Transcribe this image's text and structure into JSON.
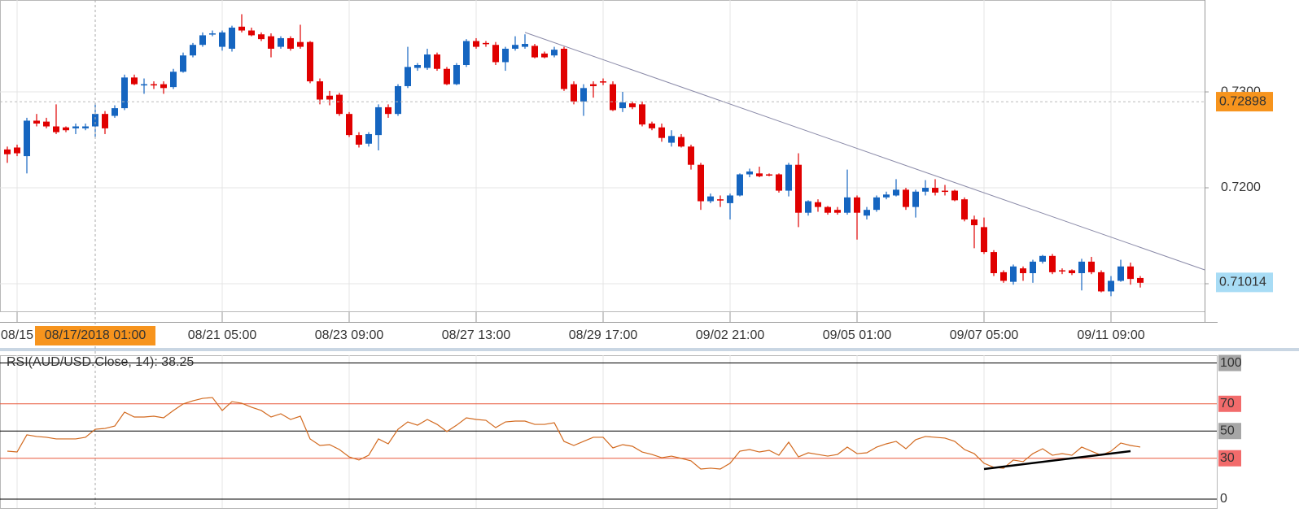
{
  "chart_data": [
    {
      "type": "candlestick",
      "categories": [
        null,
        "08/15",
        null,
        null,
        null,
        null,
        null,
        null,
        null,
        null,
        null,
        null,
        null,
        null,
        null,
        null,
        null,
        null,
        null,
        null,
        null,
        null,
        "08/21 05:00",
        null,
        null,
        null,
        null,
        null,
        null,
        null,
        null,
        null,
        null,
        null,
        null,
        "08/23 09:00",
        null,
        null,
        null,
        null,
        null,
        null,
        null,
        null,
        null,
        null,
        null,
        null,
        "08/27 13:00",
        null,
        null,
        null,
        null,
        null,
        null,
        null,
        null,
        null,
        null,
        null,
        null,
        "08/29 17:00",
        null,
        null,
        null,
        null,
        null,
        null,
        null,
        null,
        null,
        null,
        null,
        null,
        "09/02 21:00",
        null,
        null,
        null,
        null,
        null,
        null,
        null,
        null,
        null,
        null,
        null,
        null,
        "09/05 01:00",
        null,
        null,
        null,
        null,
        null,
        null,
        null,
        null,
        null,
        null,
        null,
        null,
        "09/07 05:00",
        null,
        null,
        null,
        null,
        null,
        null,
        null,
        null,
        null,
        null,
        null,
        null,
        "09/11 09:00",
        null,
        null,
        null
      ],
      "open": [
        0.724,
        0.7242,
        0.7233,
        0.727,
        0.7269,
        0.7264,
        0.7263,
        0.7262,
        0.7262,
        0.7264,
        0.7277,
        0.7275,
        0.7283,
        0.7315,
        0.7307,
        0.7308,
        0.7308,
        0.7305,
        0.7321,
        0.7338,
        0.7349,
        0.736,
        0.7347,
        0.7345,
        0.7368,
        0.7364,
        0.736,
        0.7358,
        0.7347,
        0.7356,
        0.7352,
        0.7352,
        0.7311,
        0.7296,
        0.7297,
        0.7277,
        0.7255,
        0.7246,
        0.7255,
        0.7284,
        0.7277,
        0.7306,
        0.7325,
        0.7325,
        0.7339,
        0.7324,
        0.7308,
        0.7328,
        0.7353,
        0.7351,
        0.7349,
        0.7331,
        0.7345,
        0.7347,
        0.7348,
        0.734,
        0.7338,
        0.7345,
        0.7308,
        0.729,
        0.7308,
        0.7311,
        0.7308,
        0.7283,
        0.7288,
        0.7287,
        0.7267,
        0.7263,
        0.7247,
        0.7253,
        0.7243,
        0.7224,
        0.7186,
        0.7188,
        0.7184,
        0.7192,
        0.7214,
        0.7215,
        0.7214,
        0.7214,
        0.7197,
        0.7224,
        0.7174,
        0.7185,
        0.718,
        0.7177,
        0.7174,
        0.719,
        0.7171,
        0.7177,
        0.719,
        0.7192,
        0.7198,
        0.718,
        0.7196,
        0.72,
        0.7197,
        0.7197,
        0.7188,
        0.7167,
        0.7159,
        0.7133,
        0.7112,
        0.7102,
        0.7116,
        0.7111,
        0.7123,
        0.7129,
        0.7114,
        0.7114,
        0.7111,
        0.7123,
        0.7112,
        0.7092,
        0.7103,
        0.7118,
        0.7106
      ],
      "high": [
        0.7243,
        0.7245,
        0.7273,
        0.7277,
        0.7273,
        0.7287,
        0.7264,
        0.7267,
        0.7267,
        0.7288,
        0.728,
        0.7286,
        0.7318,
        0.7318,
        0.7314,
        0.7311,
        0.7311,
        0.7324,
        0.7341,
        0.7351,
        0.7362,
        0.7364,
        0.7364,
        0.7369,
        0.7381,
        0.7367,
        0.7362,
        0.7361,
        0.7358,
        0.7358,
        0.737,
        0.7353,
        0.7314,
        0.7301,
        0.7299,
        0.7279,
        0.7258,
        0.7258,
        0.7287,
        0.7287,
        0.7308,
        0.7347,
        0.733,
        0.7345,
        0.7341,
        0.7326,
        0.733,
        0.7355,
        0.7356,
        0.7353,
        0.7352,
        0.7347,
        0.7358,
        0.736,
        0.735,
        0.7342,
        0.7347,
        0.7347,
        0.7311,
        0.7308,
        0.7311,
        0.7314,
        0.7311,
        0.73,
        0.729,
        0.729,
        0.7269,
        0.7267,
        0.726,
        0.7256,
        0.7245,
        0.7226,
        0.7194,
        0.7192,
        0.7194,
        0.7215,
        0.722,
        0.7222,
        0.7215,
        0.7215,
        0.7226,
        0.7236,
        0.7187,
        0.7188,
        0.7181,
        0.718,
        0.7219,
        0.7192,
        0.718,
        0.7192,
        0.7196,
        0.7209,
        0.72,
        0.7198,
        0.7208,
        0.7209,
        0.7203,
        0.7198,
        0.719,
        0.7171,
        0.7169,
        0.7135,
        0.7114,
        0.712,
        0.7118,
        0.7125,
        0.713,
        0.7131,
        0.7116,
        0.7115,
        0.7126,
        0.7128,
        0.7114,
        0.7108,
        0.7125,
        0.7122,
        0.7108
      ],
      "low": [
        0.7226,
        0.7233,
        0.7215,
        0.7264,
        0.7262,
        0.7256,
        0.7258,
        0.7256,
        0.726,
        0.7253,
        0.7256,
        0.7273,
        0.7281,
        0.7307,
        0.7298,
        0.7303,
        0.7298,
        0.7303,
        0.732,
        0.7336,
        0.7347,
        0.7358,
        0.7343,
        0.7342,
        0.7362,
        0.7358,
        0.7353,
        0.7336,
        0.7345,
        0.7343,
        0.7345,
        0.7309,
        0.7287,
        0.7286,
        0.7275,
        0.7253,
        0.7242,
        0.7243,
        0.7239,
        0.7273,
        0.7275,
        0.7304,
        0.7322,
        0.7323,
        0.7322,
        0.7307,
        0.7307,
        0.7326,
        0.7345,
        0.7347,
        0.7328,
        0.7322,
        0.7343,
        0.7345,
        0.7335,
        0.7335,
        0.7336,
        0.7301,
        0.7287,
        0.7275,
        0.7294,
        0.7307,
        0.728,
        0.7279,
        0.7282,
        0.7264,
        0.726,
        0.7248,
        0.7243,
        0.7242,
        0.7219,
        0.7177,
        0.7184,
        0.718,
        0.7167,
        0.7191,
        0.7211,
        0.7211,
        0.7212,
        0.7195,
        0.7191,
        0.7159,
        0.7171,
        0.7175,
        0.7172,
        0.7172,
        0.7172,
        0.7146,
        0.7167,
        0.7175,
        0.7188,
        0.7191,
        0.7177,
        0.7169,
        0.7192,
        0.7192,
        0.7192,
        0.7186,
        0.7165,
        0.7137,
        0.7131,
        0.7108,
        0.7101,
        0.7099,
        0.7103,
        0.7101,
        0.7121,
        0.711,
        0.711,
        0.7109,
        0.7093,
        0.711,
        0.7091,
        0.7087,
        0.7102,
        0.7099,
        0.7096
      ],
      "close": [
        0.7235,
        0.7236,
        0.727,
        0.7267,
        0.7264,
        0.7258,
        0.726,
        0.7264,
        0.7264,
        0.7277,
        0.7262,
        0.7283,
        0.7315,
        0.7308,
        0.7308,
        0.7307,
        0.7304,
        0.7321,
        0.7338,
        0.7349,
        0.7359,
        0.7361,
        0.7362,
        0.7367,
        0.7364,
        0.7359,
        0.7355,
        0.7345,
        0.7356,
        0.7345,
        0.7347,
        0.7311,
        0.7292,
        0.7292,
        0.7277,
        0.7255,
        0.7245,
        0.7256,
        0.7284,
        0.7277,
        0.7306,
        0.7326,
        0.7328,
        0.7339,
        0.7324,
        0.7308,
        0.7328,
        0.7353,
        0.7347,
        0.735,
        0.7331,
        0.7345,
        0.7349,
        0.735,
        0.7336,
        0.7336,
        0.7344,
        0.7303,
        0.729,
        0.7304,
        0.7306,
        0.731,
        0.7281,
        0.7289,
        0.7284,
        0.7266,
        0.7262,
        0.7252,
        0.7254,
        0.7243,
        0.7224,
        0.7186,
        0.7191,
        0.7187,
        0.7192,
        0.7214,
        0.7217,
        0.7212,
        0.7213,
        0.7197,
        0.7224,
        0.7174,
        0.7186,
        0.718,
        0.7174,
        0.7174,
        0.719,
        0.7174,
        0.7177,
        0.719,
        0.7193,
        0.7198,
        0.718,
        0.7196,
        0.72,
        0.7195,
        0.7196,
        0.7187,
        0.7167,
        0.7161,
        0.7133,
        0.7111,
        0.7103,
        0.7118,
        0.7111,
        0.7123,
        0.7129,
        0.7112,
        0.7113,
        0.7111,
        0.7123,
        0.7112,
        0.7092,
        0.7103,
        0.7118,
        0.7105,
        0.7101
      ],
      "up_color": "#1565c0",
      "down_color": "#e00000",
      "ylim": [
        0.70712,
        0.73958
      ],
      "yticks": [
        {
          "value": 0.71,
          "label": "0.7100"
        },
        {
          "value": 0.72,
          "label": "0.7200"
        },
        {
          "value": 0.73,
          "label": "0.7300"
        }
      ],
      "grid": true,
      "crosshair": {
        "index": 9,
        "label": "08/17/2018 01:00",
        "price": 0.72898,
        "color": "#f7941d"
      },
      "last_price": {
        "value": 0.71014,
        "color": "#a8dcf5"
      },
      "trendline": {
        "points": [
          [
            53,
            0.7362
          ],
          [
            122.6,
            0.71144
          ]
        ],
        "color": "#8a8aa8"
      }
    },
    {
      "type": "line",
      "title": "RSI(AUD/USD.Close, 14): 38.25",
      "values": [
        35.2,
        34.6,
        47.2,
        46.0,
        45.4,
        44.2,
        44.2,
        44.2,
        45.4,
        51.3,
        51.9,
        53.7,
        63.9,
        60.3,
        60.3,
        60.9,
        59.7,
        65.1,
        69.9,
        72.2,
        74.0,
        74.6,
        65.1,
        71.6,
        70.4,
        67.5,
        65.1,
        60.3,
        62.7,
        58.5,
        60.9,
        44.2,
        39.4,
        40.0,
        36.4,
        31.0,
        28.7,
        32.2,
        44.2,
        40.6,
        51.3,
        56.7,
        54.3,
        58.5,
        54.9,
        49.6,
        54.3,
        59.7,
        58.5,
        57.9,
        52.5,
        56.7,
        57.3,
        57.3,
        54.9,
        54.9,
        56.1,
        42.4,
        39.4,
        42.4,
        45.4,
        45.4,
        37.6,
        40.0,
        38.8,
        34.6,
        32.8,
        30.4,
        31.6,
        29.9,
        28.1,
        22.1,
        22.7,
        22.1,
        26.3,
        35.2,
        36.4,
        34.6,
        35.8,
        32.2,
        41.8,
        31.0,
        34.0,
        32.8,
        31.6,
        32.8,
        38.2,
        33.4,
        34.0,
        38.2,
        40.6,
        42.4,
        37.0,
        43.6,
        46.0,
        45.4,
        44.8,
        42.4,
        36.4,
        33.4,
        26.3,
        23.3,
        22.7,
        28.7,
        27.5,
        33.4,
        37.0,
        32.2,
        33.4,
        32.2,
        38.2,
        35.2,
        32.2,
        35.2,
        41.2,
        39.4,
        38.25
      ],
      "color": "#d2691e",
      "ylim": [
        -6.6,
        105.7
      ],
      "yticks": [
        0,
        30,
        50,
        70,
        100
      ],
      "line_colors": [
        "#000000",
        "#e8593c",
        "#000000",
        "#e8593c",
        "#000000"
      ],
      "tick_backgrounds": [
        "#ffffff",
        "#f26b6b",
        "#a6a6a6",
        "#f26b6b",
        "#a6a6a6"
      ],
      "trendline": {
        "points": [
          [
            100,
            22.1
          ],
          [
            115,
            35.2
          ]
        ],
        "color": "#000000"
      }
    }
  ]
}
